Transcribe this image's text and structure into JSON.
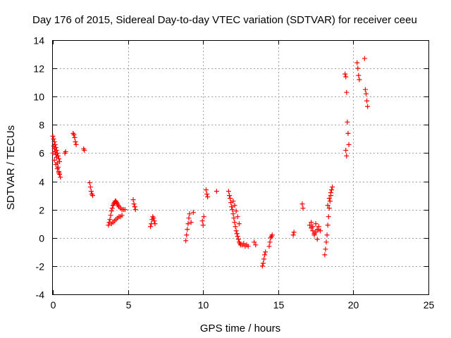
{
  "chart_data": {
    "type": "scatter",
    "title": "Day 176 of 2015, Sidereal Day-to-day VTEC variation (SDTVAR) for receiver ceeu",
    "xlabel": "GPS time / hours",
    "ylabel": "SDTVAR / TECUs",
    "xlim": [
      0,
      25
    ],
    "ylim": [
      -4,
      14
    ],
    "xticks": [
      0,
      5,
      10,
      15,
      20,
      25
    ],
    "yticks": [
      -4,
      -2,
      0,
      2,
      4,
      6,
      8,
      10,
      12,
      14
    ],
    "xtick_labels": [
      "0",
      "5",
      "10",
      "15",
      "20",
      "25"
    ],
    "ytick_labels": [
      "-4",
      "-2",
      "0",
      "2",
      "4",
      "6",
      "8",
      "10",
      "12",
      "14"
    ],
    "grid": true,
    "marker": "+",
    "color": "#ff0000",
    "series": [
      {
        "name": "SDTVAR",
        "x": [
          0.0,
          0.05,
          0.1,
          0.15,
          0.2,
          0.25,
          0.3,
          0.35,
          0.4,
          0.45,
          0.05,
          0.1,
          0.15,
          0.2,
          0.25,
          0.3,
          0.35,
          0.4,
          0.45,
          0.5,
          0.0,
          0.1,
          0.2,
          0.3,
          0.4,
          0.8,
          0.85,
          1.35,
          1.4,
          1.45,
          1.5,
          1.55,
          2.05,
          2.1,
          2.45,
          2.5,
          2.55,
          2.6,
          2.65,
          3.7,
          3.75,
          3.8,
          3.85,
          3.9,
          3.95,
          4.0,
          4.05,
          4.1,
          4.15,
          4.2,
          4.25,
          4.3,
          4.35,
          4.4,
          4.5,
          4.6,
          4.7,
          4.8,
          3.9,
          4.0,
          4.1,
          4.2,
          4.3,
          4.4,
          4.5,
          4.6,
          5.35,
          5.4,
          5.45,
          5.5,
          6.5,
          6.55,
          6.6,
          6.65,
          6.7,
          6.75,
          6.8,
          8.85,
          8.9,
          8.95,
          9.0,
          9.05,
          9.1,
          9.2,
          9.35,
          9.95,
          10.0,
          10.05,
          10.2,
          10.25,
          10.3,
          10.9,
          11.7,
          11.75,
          11.8,
          11.85,
          11.9,
          11.95,
          12.0,
          12.05,
          12.1,
          12.15,
          12.2,
          12.25,
          12.3,
          12.35,
          12.4,
          12.45,
          12.5,
          12.6,
          12.7,
          12.8,
          12.9,
          13.0,
          12.0,
          12.1,
          12.2,
          12.3,
          12.4,
          13.4,
          13.5,
          13.95,
          14.0,
          14.05,
          14.1,
          14.15,
          14.4,
          14.45,
          14.5,
          14.55,
          14.6,
          16.0,
          16.05,
          16.6,
          16.65,
          17.1,
          17.2,
          17.3,
          17.4,
          17.5,
          17.6,
          17.7,
          17.8,
          17.2,
          17.4,
          17.6,
          17.3,
          17.5,
          17.7,
          18.1,
          18.15,
          18.2,
          18.25,
          18.3,
          18.35,
          18.4,
          18.45,
          18.5,
          18.55,
          18.6,
          18.3,
          18.4,
          18.5,
          19.45,
          19.5,
          19.55,
          19.6,
          19.65,
          19.7,
          19.5,
          19.55,
          20.25,
          20.3,
          20.35,
          20.4,
          20.75,
          20.8,
          20.85,
          20.9,
          20.95
        ],
        "y": [
          7.2,
          7.0,
          6.8,
          6.6,
          6.4,
          6.2,
          6.0,
          5.8,
          5.6,
          5.4,
          6.5,
          6.3,
          6.1,
          5.9,
          5.7,
          5.3,
          5.0,
          4.7,
          4.5,
          4.3,
          6.0,
          5.5,
          5.2,
          4.9,
          4.6,
          6.0,
          6.1,
          7.4,
          7.3,
          7.1,
          6.8,
          6.6,
          6.3,
          6.2,
          3.9,
          3.6,
          3.3,
          3.1,
          3.0,
          0.9,
          1.1,
          1.3,
          1.6,
          1.9,
          2.1,
          2.3,
          2.4,
          2.5,
          2.6,
          2.6,
          2.5,
          2.4,
          2.3,
          2.2,
          2.1,
          2.0,
          2.0,
          2.0,
          1.0,
          1.1,
          1.2,
          1.3,
          1.4,
          1.5,
          1.5,
          1.6,
          2.7,
          2.4,
          2.2,
          2.0,
          0.8,
          1.0,
          1.3,
          1.5,
          1.4,
          1.2,
          1.0,
          -0.2,
          0.2,
          0.6,
          1.0,
          1.4,
          1.7,
          1.1,
          1.8,
          1.2,
          0.9,
          1.5,
          3.4,
          3.1,
          2.9,
          3.3,
          3.3,
          3.0,
          2.8,
          2.5,
          2.2,
          2.0,
          1.7,
          1.4,
          1.1,
          0.8,
          0.5,
          0.3,
          0.1,
          -0.1,
          -0.3,
          -0.4,
          -0.5,
          -0.5,
          -0.4,
          -0.6,
          -0.5,
          -0.6,
          2.6,
          2.3,
          1.9,
          1.5,
          1.0,
          -0.3,
          -0.5,
          -2.0,
          -1.8,
          -1.5,
          -1.2,
          -1.0,
          -0.6,
          -0.3,
          0.0,
          0.1,
          0.2,
          0.2,
          0.4,
          2.4,
          2.1,
          0.9,
          0.7,
          0.5,
          0.3,
          0.4,
          0.6,
          0.8,
          0.5,
          1.1,
          0.2,
          -0.1,
          0.8,
          1.0,
          0.6,
          -1.2,
          -0.8,
          -0.3,
          0.2,
          0.9,
          1.5,
          2.1,
          2.6,
          3.0,
          3.4,
          3.6,
          2.3,
          2.8,
          3.2,
          11.6,
          11.4,
          10.3,
          8.2,
          7.4,
          6.6,
          6.2,
          5.8,
          12.4,
          12.0,
          11.5,
          11.2,
          12.7,
          10.5,
          10.2,
          9.7,
          9.3
        ]
      }
    ]
  }
}
